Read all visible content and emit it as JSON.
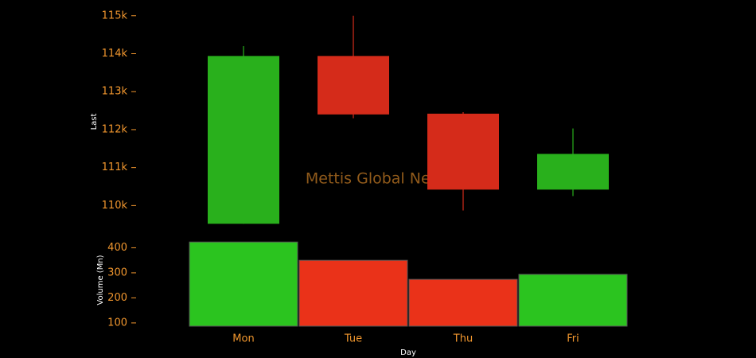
{
  "chart_data": {
    "type": "candlestick",
    "watermark": "Mettis Global News",
    "xlabel": "Day",
    "ylabel": "Last",
    "categories": [
      "Mon",
      "Tue",
      "Thu",
      "Fri"
    ],
    "open": [
      109520,
      113940,
      112420,
      110420
    ],
    "high": [
      114200,
      115000,
      112460,
      112030
    ],
    "low": [
      109520,
      112300,
      109870,
      110250
    ],
    "close": [
      113940,
      112400,
      110420,
      111360
    ],
    "up_color": "#29b01c",
    "down_color": "#d52b1a",
    "ylim": [
      109400,
      115100
    ],
    "yticks": [
      {
        "value": 110000,
        "label": "110k"
      },
      {
        "value": 111000,
        "label": "111k"
      },
      {
        "value": 112000,
        "label": "112k"
      },
      {
        "value": 113000,
        "label": "113k"
      },
      {
        "value": 114000,
        "label": "114k"
      },
      {
        "value": 115000,
        "label": "115k"
      }
    ],
    "volume": {
      "ylabel": "Volume (Mn)",
      "values": [
        423,
        350,
        274,
        294
      ],
      "up_color": "#2bc41f",
      "down_color": "#ea3219",
      "ylim": [
        87,
        430
      ],
      "yticks": [
        100,
        200,
        300,
        400
      ]
    }
  }
}
